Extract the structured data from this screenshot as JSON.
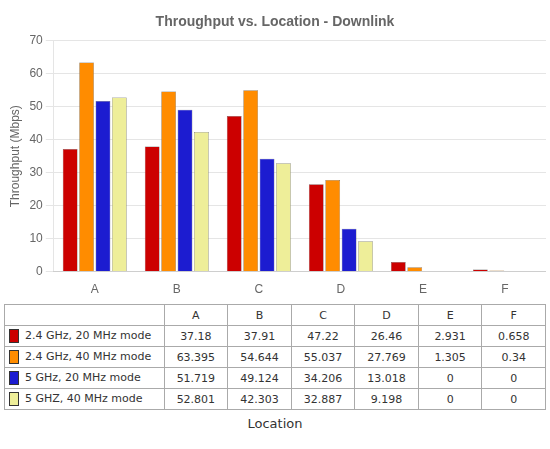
{
  "chart_data": {
    "type": "bar",
    "title": "Throughput vs. Location - Downlink",
    "xlabel": "Location",
    "ylabel": "Throughput (Mbps)",
    "categories": [
      "A",
      "B",
      "C",
      "D",
      "E",
      "F"
    ],
    "series": [
      {
        "name": "2.4 GHz, 20 MHz mode",
        "color": "#CC0000",
        "values": [
          37.18,
          37.91,
          47.22,
          26.46,
          2.931,
          0.658
        ]
      },
      {
        "name": "2.4 GHz, 40 MHz mode",
        "color": "#FF8C00",
        "values": [
          63.395,
          54.644,
          55.037,
          27.769,
          1.305,
          0.34
        ]
      },
      {
        "name": "5 GHz, 20 MHz mode",
        "color": "#1C1CD0",
        "values": [
          51.719,
          49.124,
          34.206,
          13.018,
          0,
          0
        ]
      },
      {
        "name": "5 GHZ, 40 MHz mode",
        "color": "#EEEE99",
        "values": [
          52.801,
          42.303,
          32.887,
          9.198,
          0,
          0
        ]
      }
    ],
    "ylim": [
      0,
      70
    ],
    "yticks": [
      0,
      10,
      20,
      30,
      40,
      50,
      60,
      70
    ],
    "grid": true
  }
}
